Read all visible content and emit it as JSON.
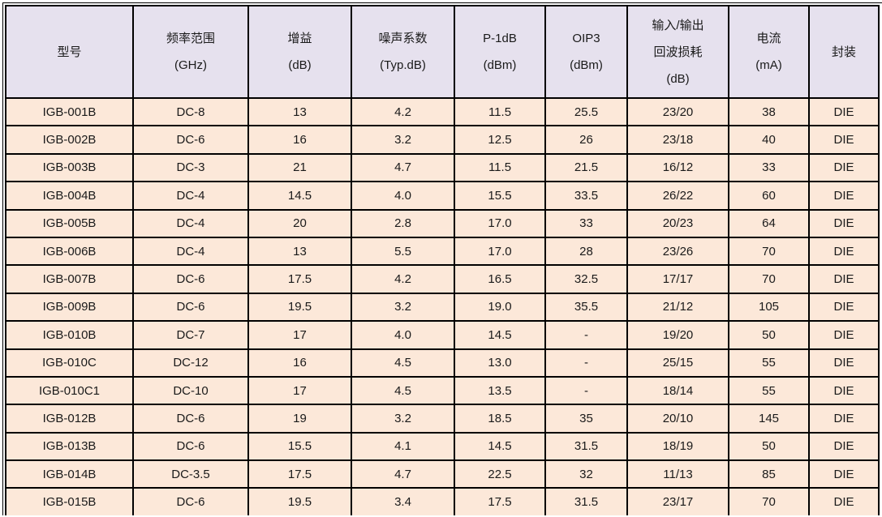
{
  "columns": [
    {
      "line1": "型号",
      "line2": "",
      "line3": ""
    },
    {
      "line1": "频率范围",
      "line2": "(GHz)",
      "line3": ""
    },
    {
      "line1": "增益",
      "line2": "(dB)",
      "line3": ""
    },
    {
      "line1": "噪声系数",
      "line2": "(Typ.dB)",
      "line3": ""
    },
    {
      "line1": "P-1dB",
      "line2": "(dBm)",
      "line3": ""
    },
    {
      "line1": "OIP3",
      "line2": "(dBm)",
      "line3": ""
    },
    {
      "line1": "输入/输出",
      "line2": "回波损耗",
      "line3": "(dB)"
    },
    {
      "line1": "电流",
      "line2": "(mA)",
      "line3": ""
    },
    {
      "line1": "封装",
      "line2": "",
      "line3": ""
    }
  ],
  "rows": [
    [
      "IGB-001B",
      "DC-8",
      "13",
      "4.2",
      "11.5",
      "25.5",
      "23/20",
      "38",
      "DIE"
    ],
    [
      "IGB-002B",
      "DC-6",
      "16",
      "3.2",
      "12.5",
      "26",
      "23/18",
      "40",
      "DIE"
    ],
    [
      "IGB-003B",
      "DC-3",
      "21",
      "4.7",
      "11.5",
      "21.5",
      "16/12",
      "33",
      "DIE"
    ],
    [
      "IGB-004B",
      "DC-4",
      "14.5",
      "4.0",
      "15.5",
      "33.5",
      "26/22",
      "60",
      "DIE"
    ],
    [
      "IGB-005B",
      "DC-4",
      "20",
      "2.8",
      "17.0",
      "33",
      "20/23",
      "64",
      "DIE"
    ],
    [
      "IGB-006B",
      "DC-4",
      "13",
      "5.5",
      "17.0",
      "28",
      "23/26",
      "70",
      "DIE"
    ],
    [
      "IGB-007B",
      "DC-6",
      "17.5",
      "4.2",
      "16.5",
      "32.5",
      "17/17",
      "70",
      "DIE"
    ],
    [
      "IGB-009B",
      "DC-6",
      "19.5",
      "3.2",
      "19.0",
      "35.5",
      "21/12",
      "105",
      "DIE"
    ],
    [
      "IGB-010B",
      "DC-7",
      "17",
      "4.0",
      "14.5",
      "-",
      "19/20",
      "50",
      "DIE"
    ],
    [
      "IGB-010C",
      "DC-12",
      "16",
      "4.5",
      "13.0",
      "-",
      "25/15",
      "55",
      "DIE"
    ],
    [
      "IGB-010C1",
      "DC-10",
      "17",
      "4.5",
      "13.5",
      "-",
      "18/14",
      "55",
      "DIE"
    ],
    [
      "IGB-012B",
      "DC-6",
      "19",
      "3.2",
      "18.5",
      "35",
      "20/10",
      "145",
      "DIE"
    ],
    [
      "IGB-013B",
      "DC-6",
      "15.5",
      "4.1",
      "14.5",
      "31.5",
      "18/19",
      "50",
      "DIE"
    ],
    [
      "IGB-014B",
      "DC-3.5",
      "17.5",
      "4.7",
      "22.5",
      "32",
      "11/13",
      "85",
      "DIE"
    ],
    [
      "IGB-015B",
      "DC-6",
      "19.5",
      "3.4",
      "17.5",
      "31.5",
      "23/17",
      "70",
      "DIE"
    ]
  ],
  "colors": {
    "header_bg": "#e6e1ee",
    "row_bg": "#fce8d9"
  }
}
